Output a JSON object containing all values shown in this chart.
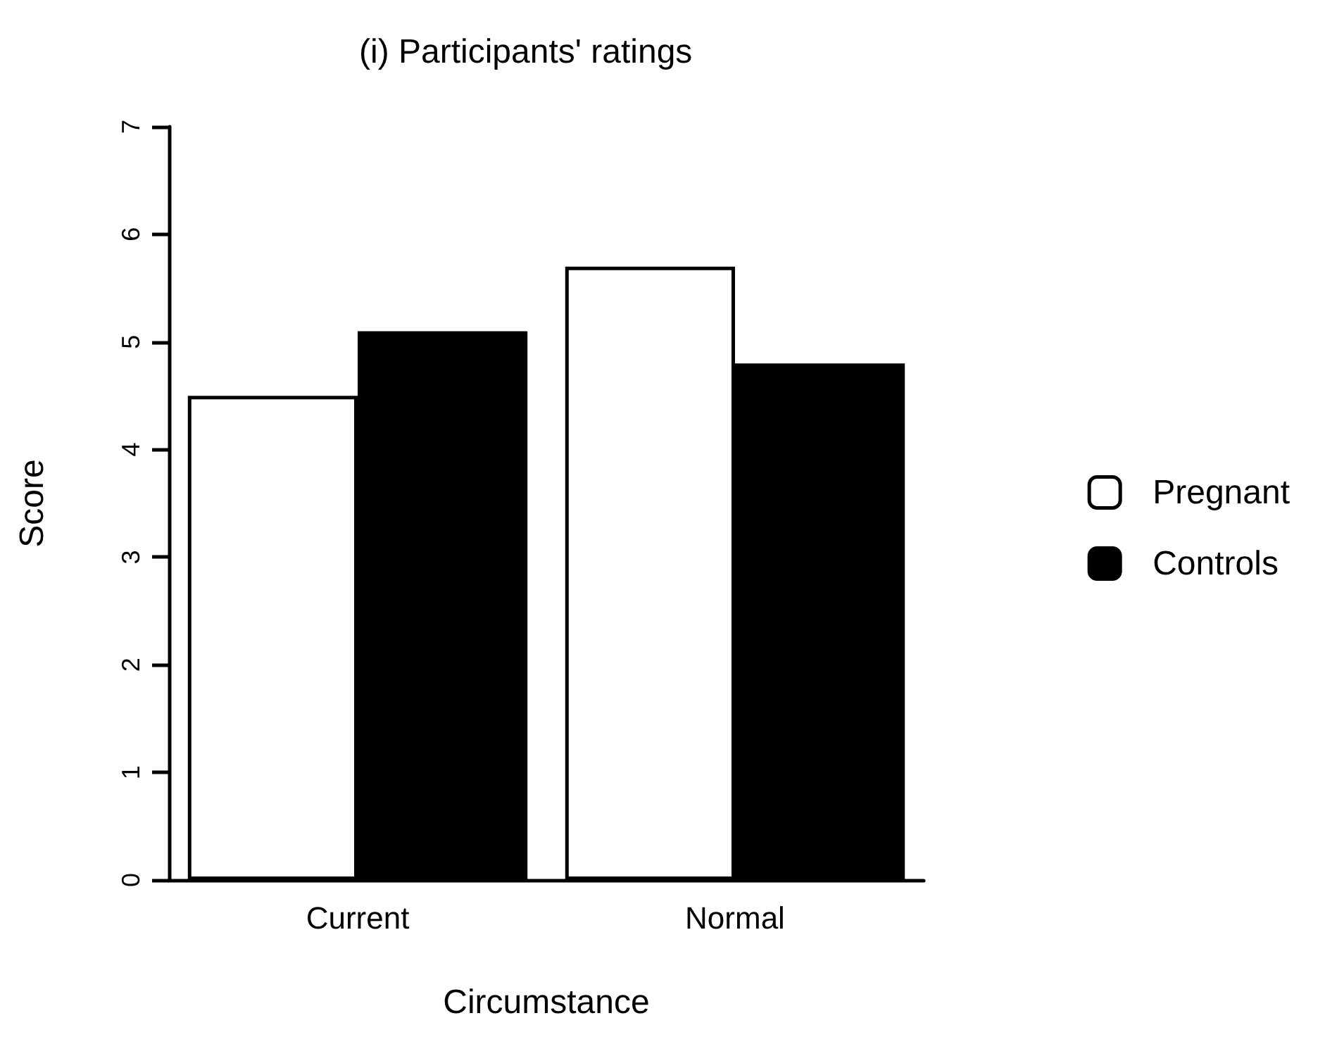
{
  "chart_data": {
    "type": "bar",
    "title": "(i) Participants' ratings",
    "xlabel": "Circumstance",
    "ylabel": "Score",
    "categories": [
      "Current",
      "Normal"
    ],
    "series": [
      {
        "name": "Pregnant",
        "color": "#ffffff",
        "values": [
          4.5,
          5.7
        ]
      },
      {
        "name": "Controls",
        "color": "#000000",
        "values": [
          5.1,
          4.8
        ]
      }
    ],
    "ylim": [
      0,
      7
    ],
    "yticks": [
      0,
      1,
      2,
      3,
      4,
      5,
      6,
      7
    ],
    "grid": false,
    "legend": "right"
  }
}
